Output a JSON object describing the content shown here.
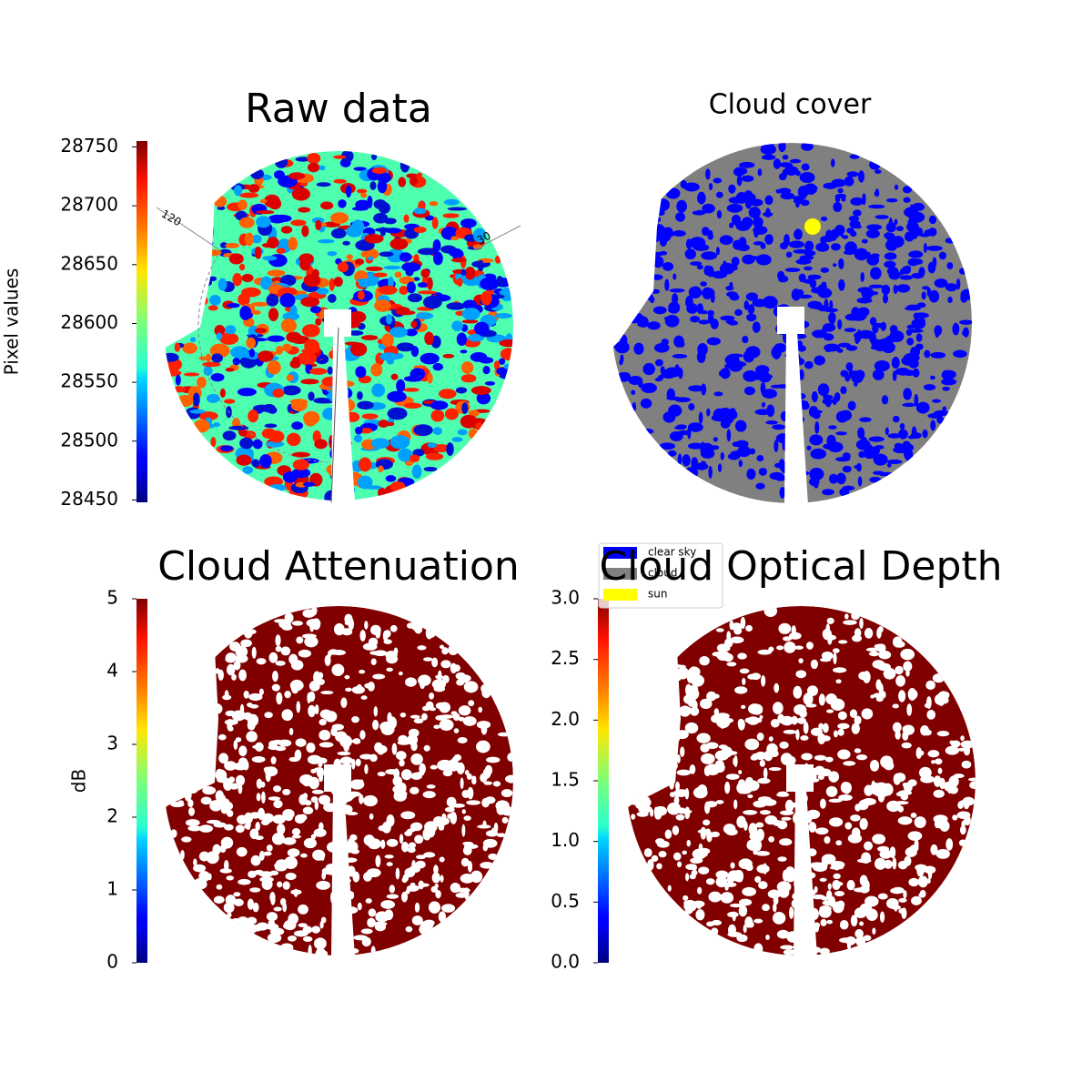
{
  "chart_data": [
    {
      "type": "image",
      "title": "Raw data",
      "ylabel": "Pixel values",
      "colormap": "jet",
      "ylim": [
        28448,
        28755
      ],
      "yticks": [
        28450,
        28500,
        28550,
        28600,
        28650,
        28700,
        28750
      ],
      "annotations": [
        "120",
        "30"
      ]
    },
    {
      "type": "classification",
      "title": "Cloud cover",
      "series": [
        {
          "name": "clear sky",
          "color": "#0000ff"
        },
        {
          "name": "cloud",
          "color": "#808080"
        },
        {
          "name": "sun",
          "color": "#ffff00"
        }
      ]
    },
    {
      "type": "image",
      "title": "Cloud Attenuation",
      "ylabel": "dB",
      "colormap": "jet",
      "ylim": [
        0,
        5
      ],
      "yticks": [
        0,
        1,
        2,
        3,
        4,
        5
      ]
    },
    {
      "type": "image",
      "title": "Cloud Optical Depth",
      "colormap": "jet",
      "ylim": [
        0,
        3
      ],
      "yticks": [
        {
          "value": 0,
          "label": "0.0"
        },
        {
          "value": 0.5,
          "label": "0.5"
        },
        {
          "value": 1,
          "label": "1.0"
        },
        {
          "value": 1.5,
          "label": "1.5"
        },
        {
          "value": 2,
          "label": "2.0"
        },
        {
          "value": 2.5,
          "label": "2.5"
        },
        {
          "value": 3,
          "label": "3.0"
        }
      ]
    }
  ]
}
